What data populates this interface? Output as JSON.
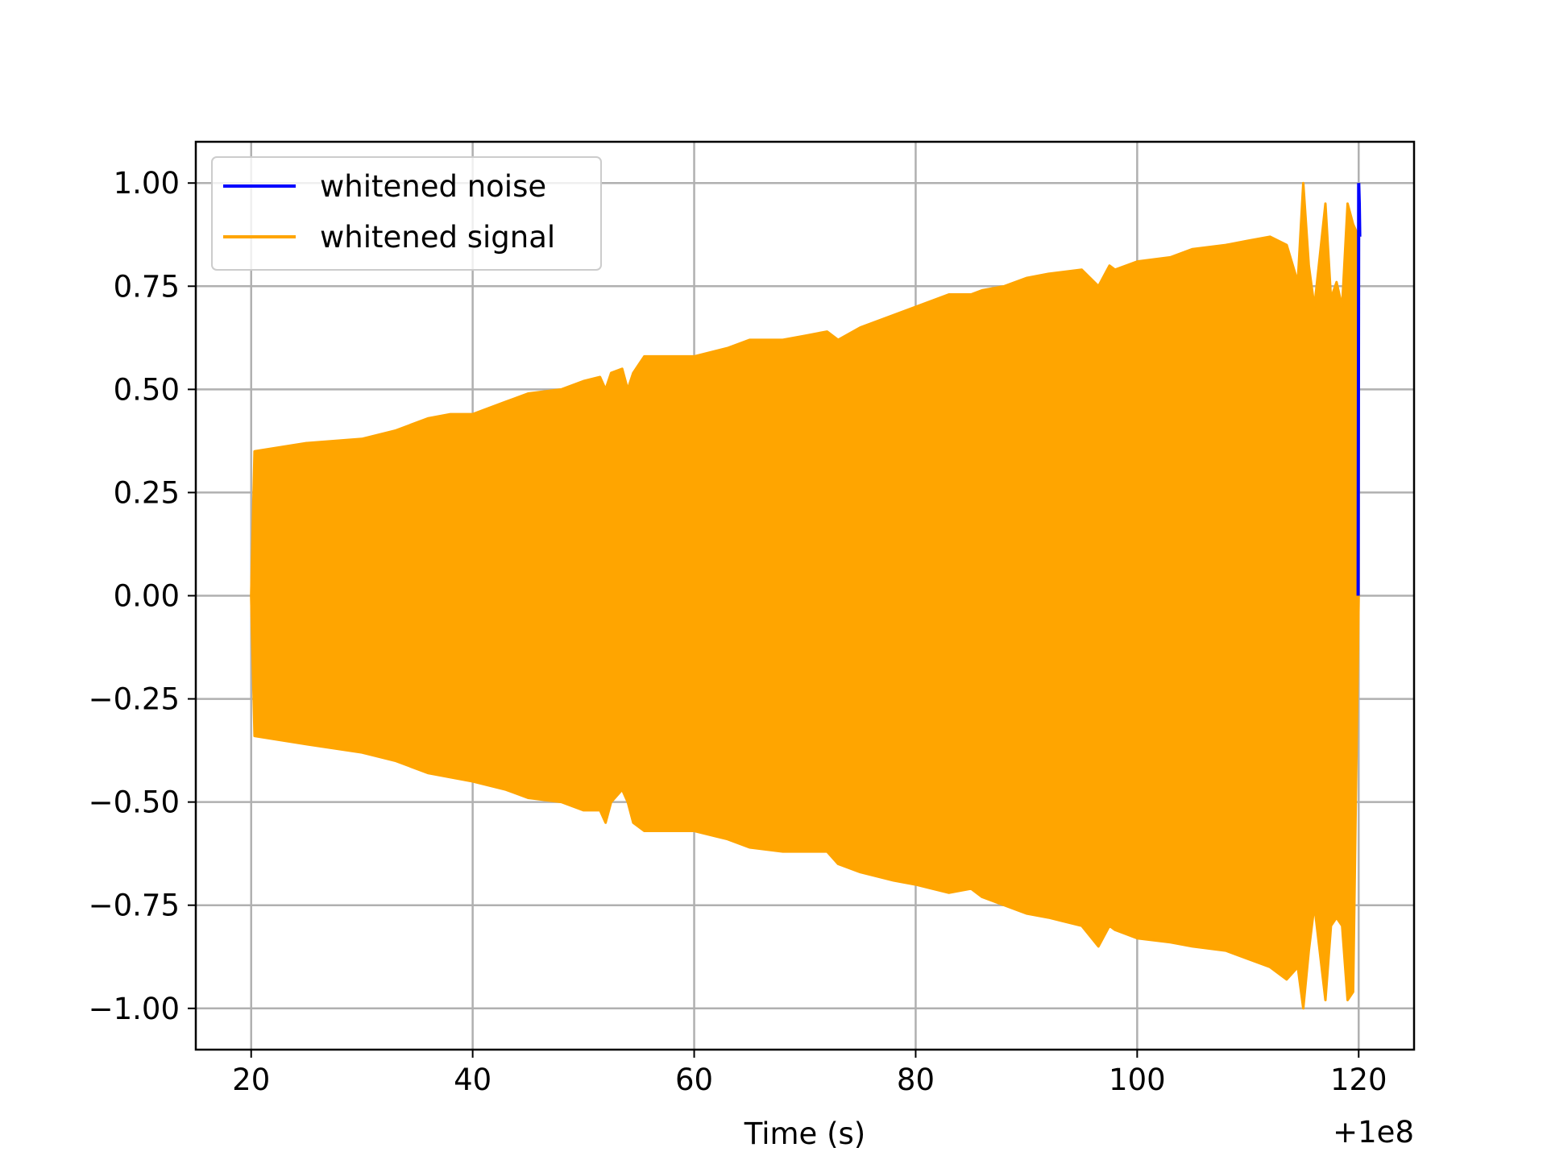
{
  "chart_data": {
    "type": "line",
    "title": "",
    "xlabel": "Time (s)",
    "ylabel": "",
    "x_offset_label": "+1e8",
    "xlim": [
      15,
      125
    ],
    "ylim": [
      -1.1,
      1.1
    ],
    "x_ticks": [
      20,
      40,
      60,
      80,
      100,
      120
    ],
    "x_tick_labels": [
      "20",
      "40",
      "60",
      "80",
      "100",
      "120"
    ],
    "y_ticks": [
      1.0,
      0.75,
      0.5,
      0.25,
      0.0,
      -0.25,
      -0.5,
      -0.75,
      -1.0
    ],
    "y_tick_labels": [
      "1.00",
      "0.75",
      "0.50",
      "0.25",
      "0.00",
      "−0.25",
      "−0.50",
      "−0.75",
      "−1.00"
    ],
    "grid": true,
    "legend_position": "top-left",
    "series": [
      {
        "name": "whitened noise",
        "color": "#0000ff",
        "x": [
          119.95,
          120.0,
          120.05,
          120.1
        ],
        "y": [
          0.0,
          1.0,
          0.95,
          0.87
        ]
      },
      {
        "name": "whitened signal",
        "color": "#ffa500",
        "upper_envelope": {
          "x": [
            20,
            20.3,
            25,
            30,
            33,
            36,
            38,
            40,
            43,
            45,
            48,
            50,
            51.5,
            52,
            52.5,
            53.5,
            54,
            54.5,
            55,
            55.5,
            58,
            60,
            63,
            65,
            68,
            70,
            72,
            73,
            75,
            78,
            80,
            83,
            85,
            86,
            88,
            90,
            92,
            95,
            96.5,
            97.5,
            98,
            100,
            103,
            105,
            108,
            110,
            112,
            113.5,
            114.5,
            115,
            115.5,
            116,
            117,
            117.5,
            118,
            118.5,
            119,
            119.5,
            120
          ],
          "y": [
            0.0,
            0.35,
            0.37,
            0.38,
            0.4,
            0.43,
            0.44,
            0.44,
            0.47,
            0.49,
            0.5,
            0.52,
            0.53,
            0.5,
            0.54,
            0.55,
            0.5,
            0.54,
            0.56,
            0.58,
            0.58,
            0.58,
            0.6,
            0.62,
            0.62,
            0.63,
            0.64,
            0.62,
            0.65,
            0.68,
            0.7,
            0.73,
            0.73,
            0.74,
            0.75,
            0.77,
            0.78,
            0.79,
            0.75,
            0.8,
            0.79,
            0.81,
            0.82,
            0.84,
            0.85,
            0.86,
            0.87,
            0.85,
            0.76,
            1.0,
            0.8,
            0.7,
            0.95,
            0.72,
            0.76,
            0.7,
            0.95,
            0.9,
            0.87
          ]
        },
        "lower_envelope": {
          "x": [
            20,
            20.3,
            25,
            30,
            33,
            36,
            38,
            40,
            43,
            45,
            48,
            50,
            51.5,
            52,
            52.5,
            53.5,
            54,
            54.5,
            55,
            55.5,
            58,
            60,
            63,
            65,
            68,
            70,
            72,
            73,
            75,
            78,
            80,
            83,
            85,
            86,
            88,
            90,
            92,
            95,
            96.5,
            97.5,
            98,
            100,
            103,
            105,
            108,
            110,
            112,
            113.5,
            114.5,
            115,
            115.5,
            116,
            117,
            117.5,
            118,
            118.5,
            119,
            119.5,
            120
          ],
          "y": [
            0.0,
            -0.34,
            -0.36,
            -0.38,
            -0.4,
            -0.43,
            -0.44,
            -0.45,
            -0.47,
            -0.49,
            -0.5,
            -0.52,
            -0.52,
            -0.55,
            -0.5,
            -0.47,
            -0.5,
            -0.55,
            -0.56,
            -0.57,
            -0.57,
            -0.57,
            -0.59,
            -0.61,
            -0.62,
            -0.62,
            -0.62,
            -0.65,
            -0.67,
            -0.69,
            -0.7,
            -0.72,
            -0.71,
            -0.73,
            -0.75,
            -0.77,
            -0.78,
            -0.8,
            -0.85,
            -0.8,
            -0.81,
            -0.83,
            -0.84,
            -0.85,
            -0.86,
            -0.88,
            -0.9,
            -0.93,
            -0.9,
            -1.0,
            -0.86,
            -0.75,
            -0.98,
            -0.8,
            -0.78,
            -0.8,
            -0.98,
            -0.96,
            0.0
          ]
        }
      }
    ]
  }
}
